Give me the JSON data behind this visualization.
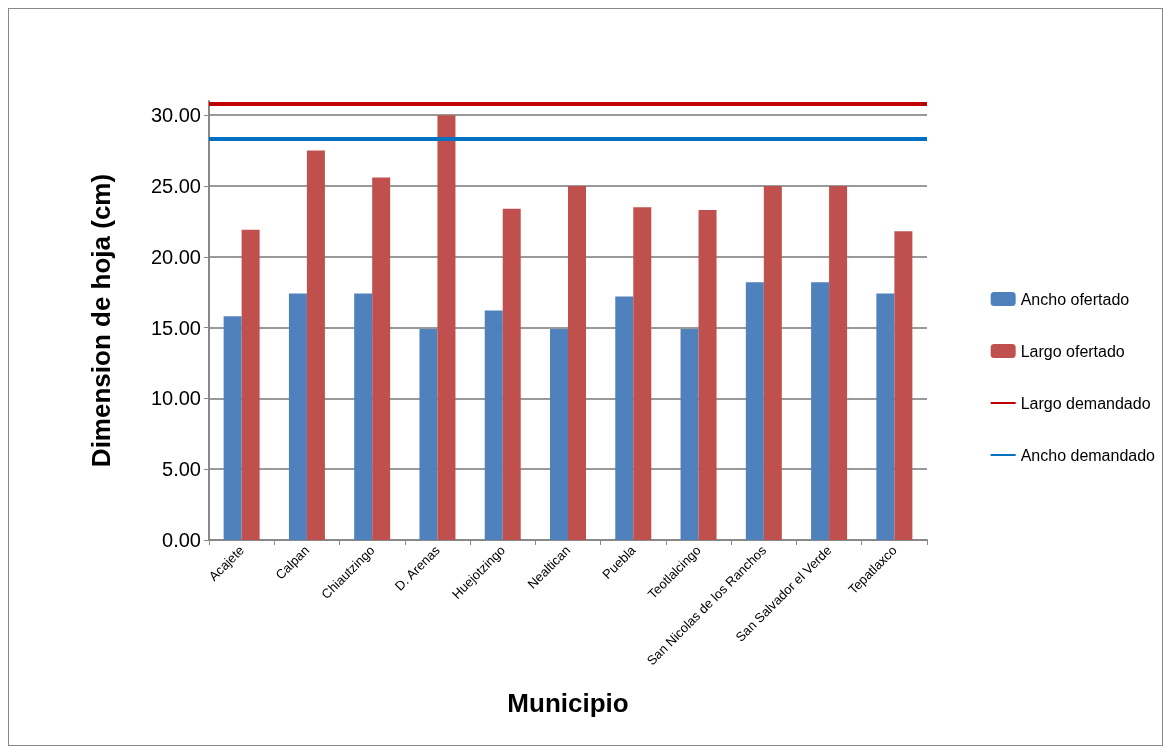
{
  "chart_data": {
    "type": "bar",
    "xlabel": "Municipio",
    "ylabel": "Dimension de hoja (cm)",
    "categories": [
      "Acajete",
      "Calpan",
      "Chiautzingo",
      "D. Arenas",
      "Huejotzingo",
      "Nealtican",
      "Puebla",
      "Teotlalcingo",
      "San Nicolas de los Ranchos",
      "San Salvador el Verde",
      "Tepatlaxco"
    ],
    "series": [
      {
        "name": "Ancho ofertado",
        "color": "#4f81bd",
        "values": [
          15.8,
          17.4,
          17.4,
          14.9,
          16.2,
          14.9,
          17.2,
          14.9,
          18.2,
          18.2,
          17.4
        ]
      },
      {
        "name": "Largo ofertado",
        "color": "#c0504d",
        "values": [
          21.9,
          27.5,
          25.6,
          30.0,
          23.4,
          25.0,
          23.5,
          23.3,
          25.0,
          25.0,
          21.8
        ]
      }
    ],
    "ref_lines": [
      {
        "axis": "y",
        "value": 30.8,
        "label": "Largo demandado",
        "color": "#c00000"
      },
      {
        "axis": "y",
        "value": 28.3,
        "label": "Ancho demandado",
        "color": "#0070c0"
      }
    ],
    "ylim": [
      0,
      31
    ],
    "yticks": [
      {
        "value": 0,
        "label": "0.00"
      },
      {
        "value": 5,
        "label": "5.00"
      },
      {
        "value": 10,
        "label": "10.00"
      },
      {
        "value": 15,
        "label": "15.00"
      },
      {
        "value": 20,
        "label": "20.00"
      },
      {
        "value": 25,
        "label": "25.00"
      },
      {
        "value": 30,
        "label": "30.00"
      }
    ],
    "grid": "y",
    "legend": "right"
  }
}
